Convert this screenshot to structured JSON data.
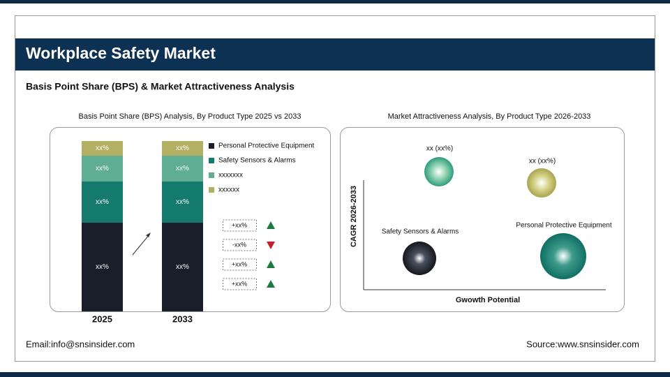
{
  "header": {
    "title": "Workplace Safety Market",
    "subtitle": "Basis Point Share (BPS) & Market Attractiveness Analysis"
  },
  "left_panel": {
    "title": "Basis Point Share (BPS) Analysis, By Product Type 2025 vs 2033",
    "bars": [
      {
        "label": "2025",
        "segments": [
          "xx%",
          "xx%",
          "xx%",
          "xx%"
        ]
      },
      {
        "label": "2033",
        "segments": [
          "xx%",
          "xx%",
          "xx%",
          "xx%"
        ]
      }
    ],
    "legend": [
      "Personal Protective Equipment",
      "Safety Sensors & Alarms",
      "xxxxxxx",
      "xxxxxx"
    ],
    "changes": [
      "+xx%",
      "-xx%",
      "+xx%",
      "+xx%"
    ]
  },
  "right_panel": {
    "title": "Market Attractiveness Analysis, By Product Type 2026-2033",
    "y_label": "CAGR 2026-2033",
    "x_label": "Gwowth Potential",
    "bubbles": [
      {
        "label": "xx (xx%)"
      },
      {
        "label": "xx (xx%)"
      },
      {
        "label": "Safety Sensors & Alarms"
      },
      {
        "label": "Personal Protective Equipment"
      }
    ]
  },
  "footer": {
    "email": "Email:info@snsinsider.com",
    "source": "Source:www.snsinsider.com"
  }
}
